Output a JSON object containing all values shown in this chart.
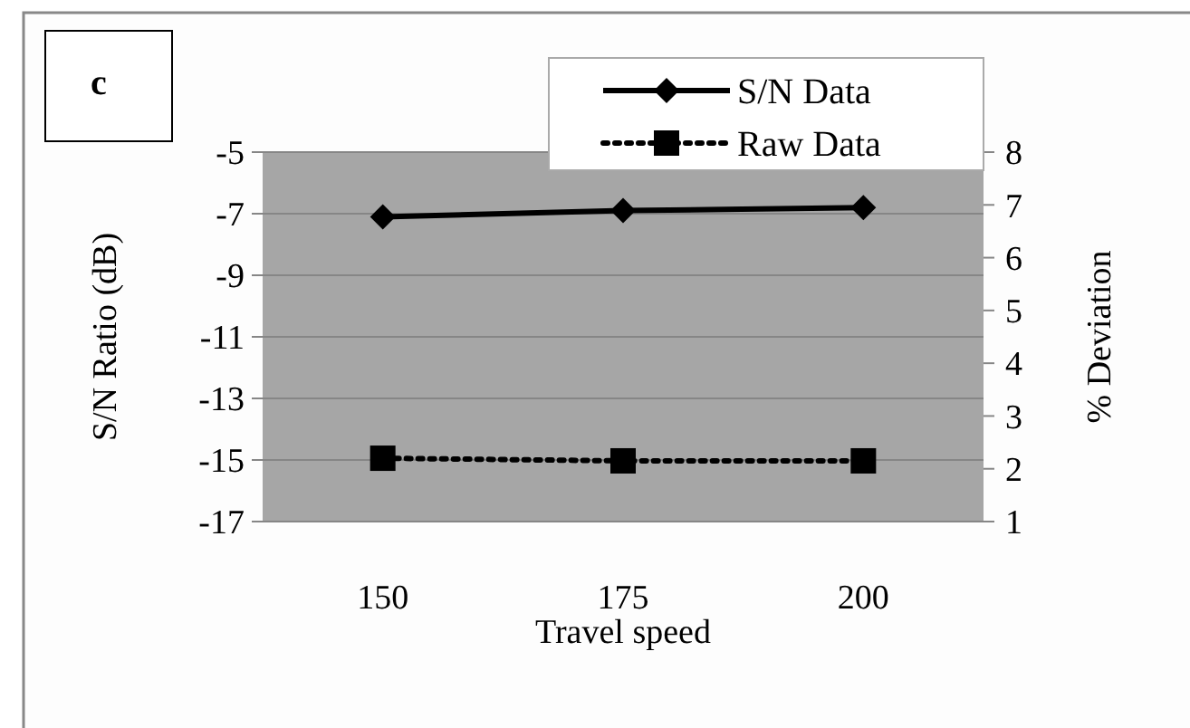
{
  "chart_data": {
    "type": "line",
    "categories": [
      "150",
      "175",
      "200"
    ],
    "xlabel": "Travel speed",
    "ylabel": "S/N Ratio (dB)",
    "y2label": "% Deviation",
    "annotations": [
      "c"
    ],
    "ylim": [
      -17,
      -5
    ],
    "yticks": [
      -17,
      -15,
      -13,
      -11,
      -9,
      -7,
      -5
    ],
    "y2lim": [
      1,
      8
    ],
    "y2ticks": [
      1,
      2,
      3,
      4,
      5,
      6,
      7,
      8
    ],
    "grid": "y",
    "legend": "top right",
    "series": [
      {
        "name": "S/N Data",
        "color": "#000000",
        "values": [
          -7.1,
          -6.9,
          -6.8
        ],
        "marker": "diamond",
        "line_style": "solid"
      },
      {
        "name": "Raw Data",
        "color": "#000000",
        "values": [
          2.2,
          2.15,
          2.15
        ],
        "axis": "y2",
        "marker": "square",
        "line_style": "dotted"
      }
    ]
  }
}
